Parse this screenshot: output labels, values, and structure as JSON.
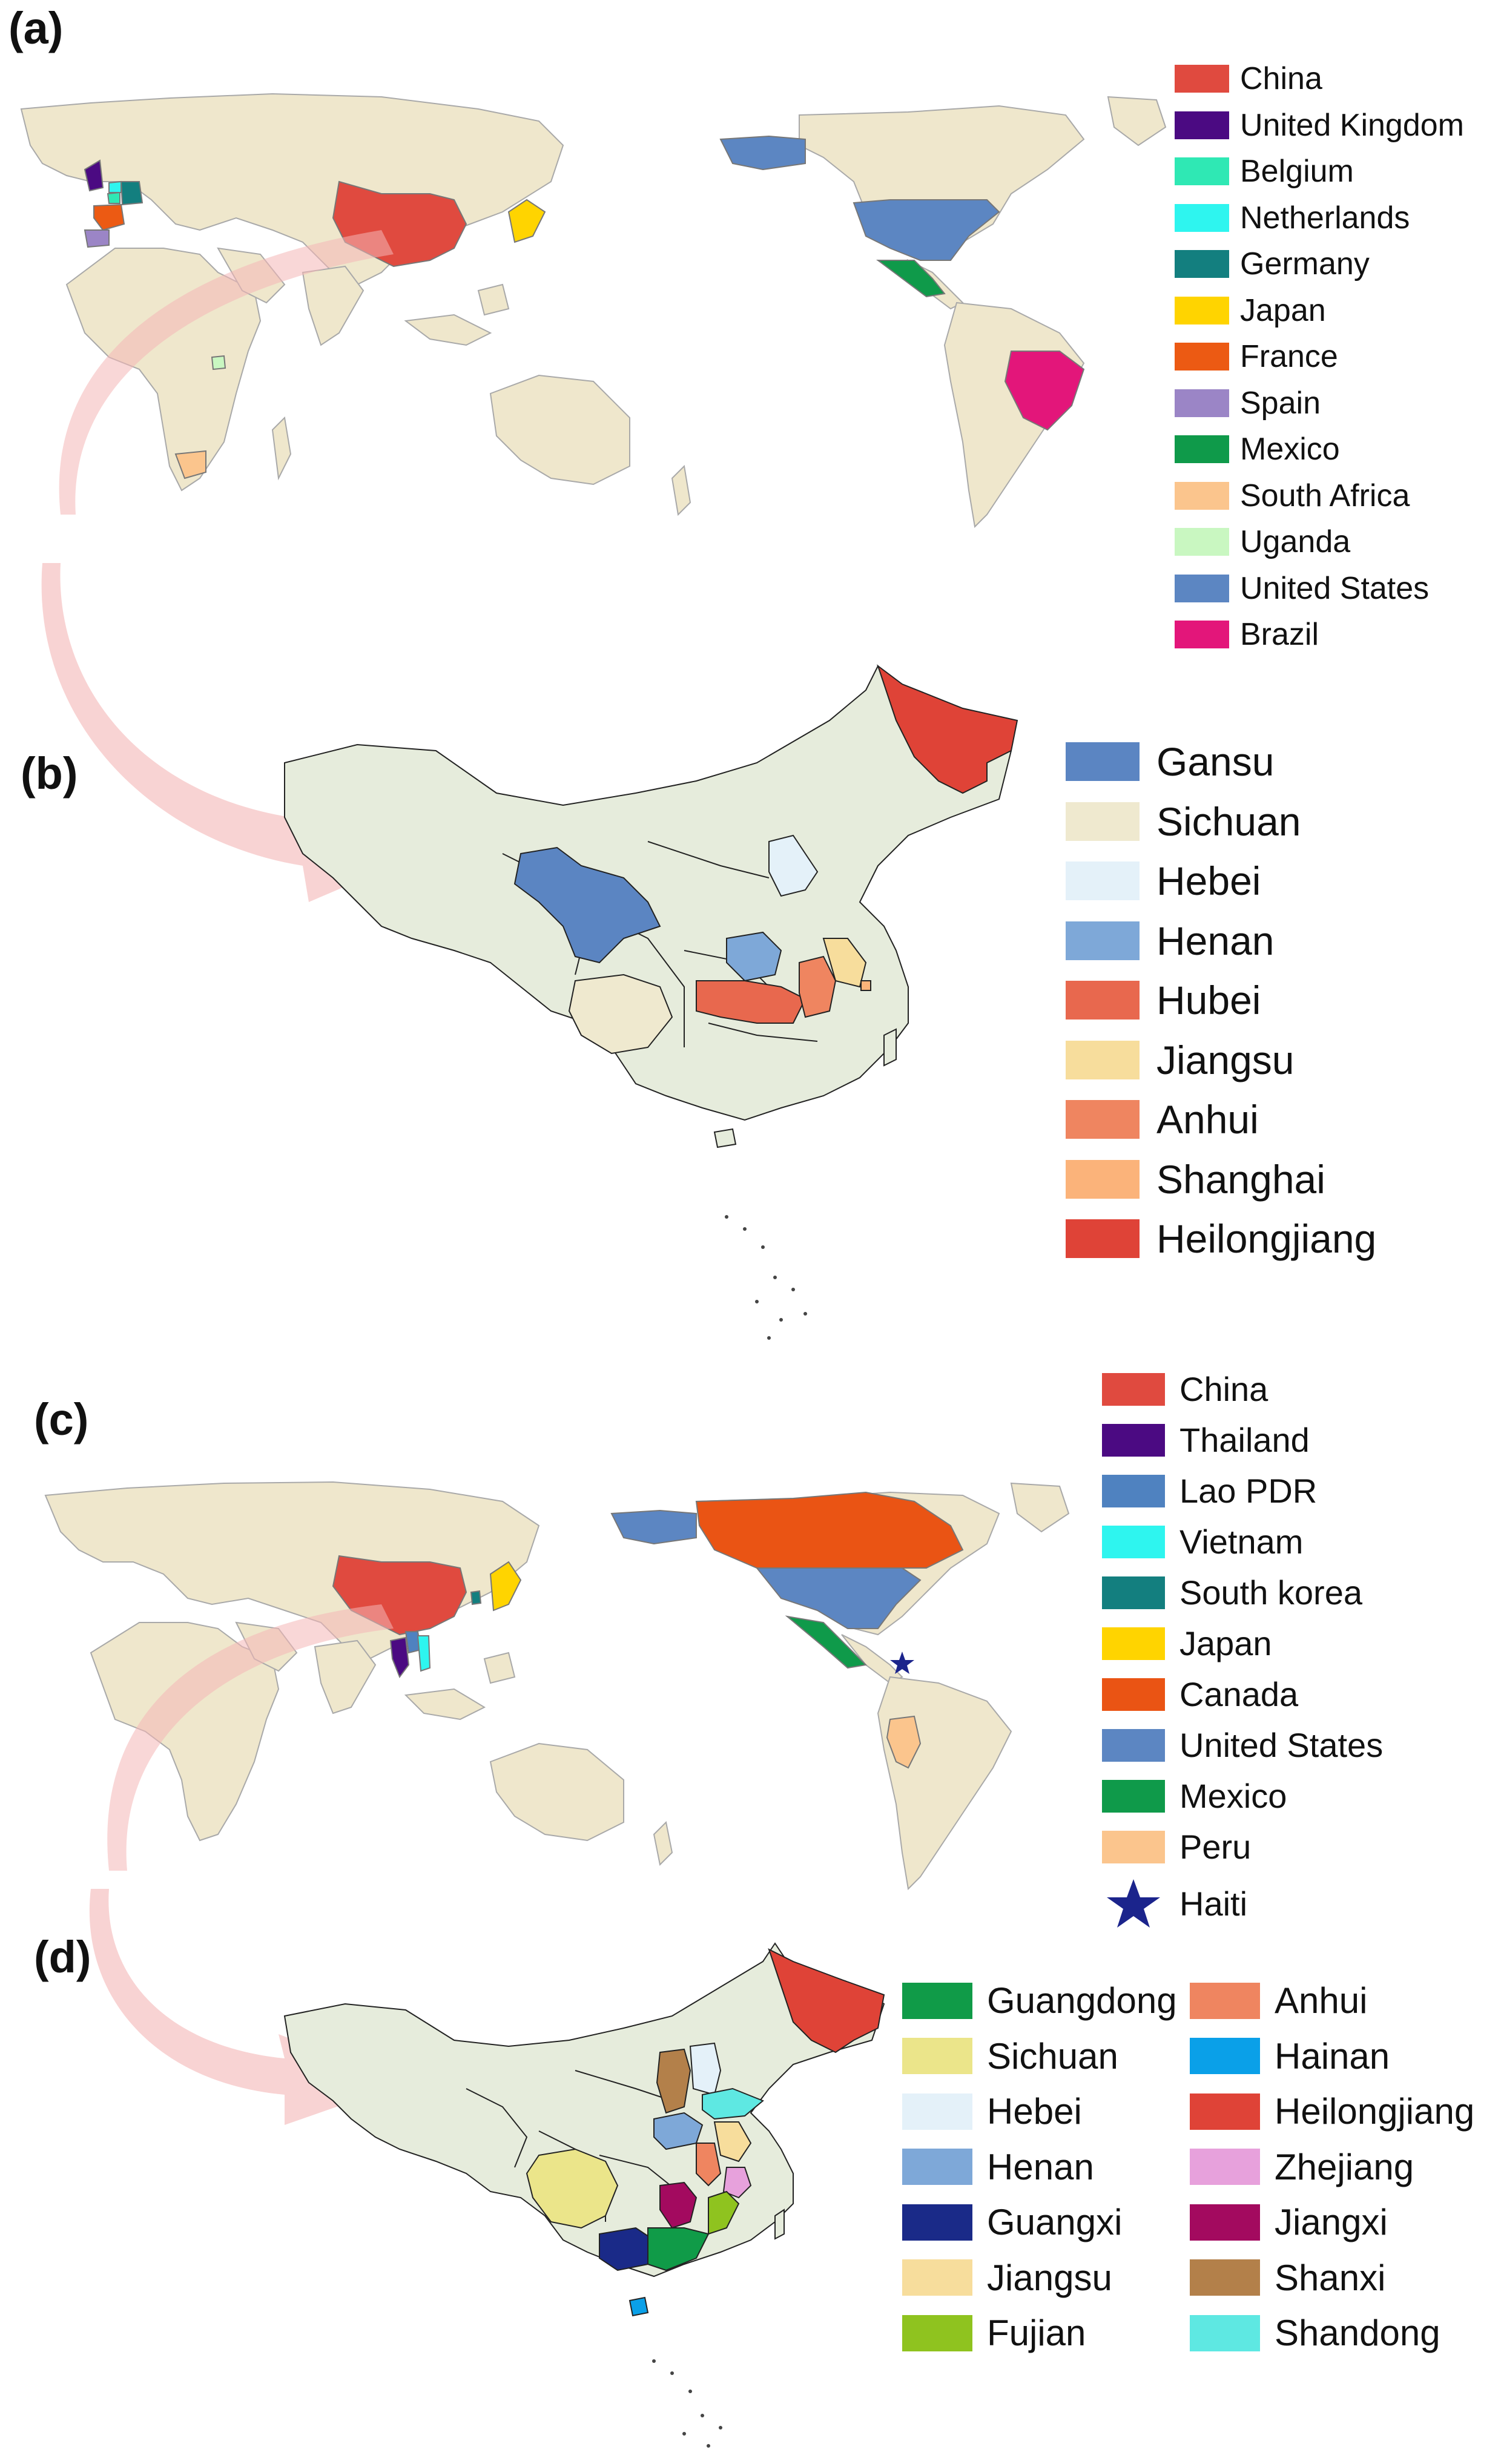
{
  "panels": {
    "a": {
      "label": "(a)"
    },
    "b": {
      "label": "(b)"
    },
    "c": {
      "label": "(c)"
    },
    "d": {
      "label": "(d)"
    }
  },
  "colors": {
    "land": "#efe7cc",
    "china_land": "#e6ecdc",
    "border": "#a9a9a9",
    "arrow": "#f4b6b6",
    "china": "#e04a3f",
    "united_kingdom": "#4b0a82",
    "belgium": "#2fe8b4",
    "netherlands": "#2ef5ef",
    "germany": "#137f7f",
    "japan": "#ffd400",
    "france": "#ec5a13",
    "spain": "#9b85c6",
    "mexico": "#0f9a4a",
    "south_africa": "#fbc58d",
    "uganda": "#c9f7c1",
    "united_states": "#5c86c2",
    "brazil": "#e3167a",
    "gansu": "#5b85c2",
    "sichuan_b": "#efe9cf",
    "hebei": "#e4f1f9",
    "henan": "#7ea8d8",
    "hubei": "#e8684e",
    "jiangsu": "#f7dd9c",
    "anhui": "#ef8560",
    "shanghai": "#fbb37a",
    "heilongjiang": "#df4337",
    "thailand": "#4b0a82",
    "lao_pdr": "#4f82c0",
    "vietnam": "#2ef5ef",
    "south_korea": "#137f7f",
    "canada": "#ea5414",
    "peru": "#fbc58d",
    "haiti_star": "#1b248c",
    "guangdong": "#109b48",
    "sichuan_d": "#ebe58a",
    "guangxi": "#1a2a88",
    "fujian": "#8fc31f",
    "hainan": "#0aa0e8",
    "zhejiang": "#e7a1dc",
    "jiangxi": "#a30a5f",
    "shanxi": "#b3804a",
    "shandong": "#5ee8e2"
  },
  "legend_a": [
    {
      "label": "China",
      "color": "#e04a3f"
    },
    {
      "label": "United Kingdom",
      "color": "#4b0a82"
    },
    {
      "label": "Belgium",
      "color": "#2fe8b4"
    },
    {
      "label": "Netherlands",
      "color": "#2ef5ef"
    },
    {
      "label": "Germany",
      "color": "#137f7f"
    },
    {
      "label": "Japan",
      "color": "#ffd400"
    },
    {
      "label": "France",
      "color": "#ec5a13"
    },
    {
      "label": "Spain",
      "color": "#9b85c6"
    },
    {
      "label": "Mexico",
      "color": "#0f9a4a"
    },
    {
      "label": "South Africa",
      "color": "#fbc58d"
    },
    {
      "label": "Uganda",
      "color": "#c9f7c1"
    },
    {
      "label": "United States",
      "color": "#5c86c2"
    },
    {
      "label": "Brazil",
      "color": "#e3167a"
    }
  ],
  "legend_b": [
    {
      "label": "Gansu",
      "color": "#5b85c2"
    },
    {
      "label": "Sichuan",
      "color": "#efe9cf"
    },
    {
      "label": "Hebei",
      "color": "#e4f1f9"
    },
    {
      "label": "Henan",
      "color": "#7ea8d8"
    },
    {
      "label": "Hubei",
      "color": "#e8684e"
    },
    {
      "label": "Jiangsu",
      "color": "#f7dd9c"
    },
    {
      "label": "Anhui",
      "color": "#ef8560"
    },
    {
      "label": "Shanghai",
      "color": "#fbb37a"
    },
    {
      "label": "Heilongjiang",
      "color": "#df4337"
    }
  ],
  "legend_c": [
    {
      "label": "China",
      "color": "#e04a3f"
    },
    {
      "label": "Thailand",
      "color": "#4b0a82"
    },
    {
      "label": "Lao PDR",
      "color": "#4f82c0"
    },
    {
      "label": "Vietnam",
      "color": "#2ef5ef"
    },
    {
      "label": "South korea",
      "color": "#137f7f"
    },
    {
      "label": "Japan",
      "color": "#ffd400"
    },
    {
      "label": "Canada",
      "color": "#ea5414"
    },
    {
      "label": "United States",
      "color": "#5c86c2"
    },
    {
      "label": "Mexico",
      "color": "#0f9a4a"
    },
    {
      "label": "Peru",
      "color": "#fbc58d"
    },
    {
      "label": "Haiti",
      "color": "#1b248c",
      "marker": "star"
    }
  ],
  "legend_d_left": [
    {
      "label": "Guangdong",
      "color": "#109b48"
    },
    {
      "label": "Sichuan",
      "color": "#ebe58a"
    },
    {
      "label": "Hebei",
      "color": "#e4f1f9"
    },
    {
      "label": "Henan",
      "color": "#7ea8d8"
    },
    {
      "label": "Guangxi",
      "color": "#1a2a88"
    },
    {
      "label": "Jiangsu",
      "color": "#f7dd9c"
    },
    {
      "label": "Fujian",
      "color": "#8fc31f"
    }
  ],
  "legend_d_right": [
    {
      "label": "Anhui",
      "color": "#ef8560"
    },
    {
      "label": "Hainan",
      "color": "#0aa0e8"
    },
    {
      "label": "Heilongjiang",
      "color": "#df4337"
    },
    {
      "label": "Zhejiang",
      "color": "#e7a1dc"
    },
    {
      "label": "Jiangxi",
      "color": "#a30a5f"
    },
    {
      "label": "Shanxi",
      "color": "#b3804a"
    },
    {
      "label": "Shandong",
      "color": "#5ee8e2"
    }
  ]
}
